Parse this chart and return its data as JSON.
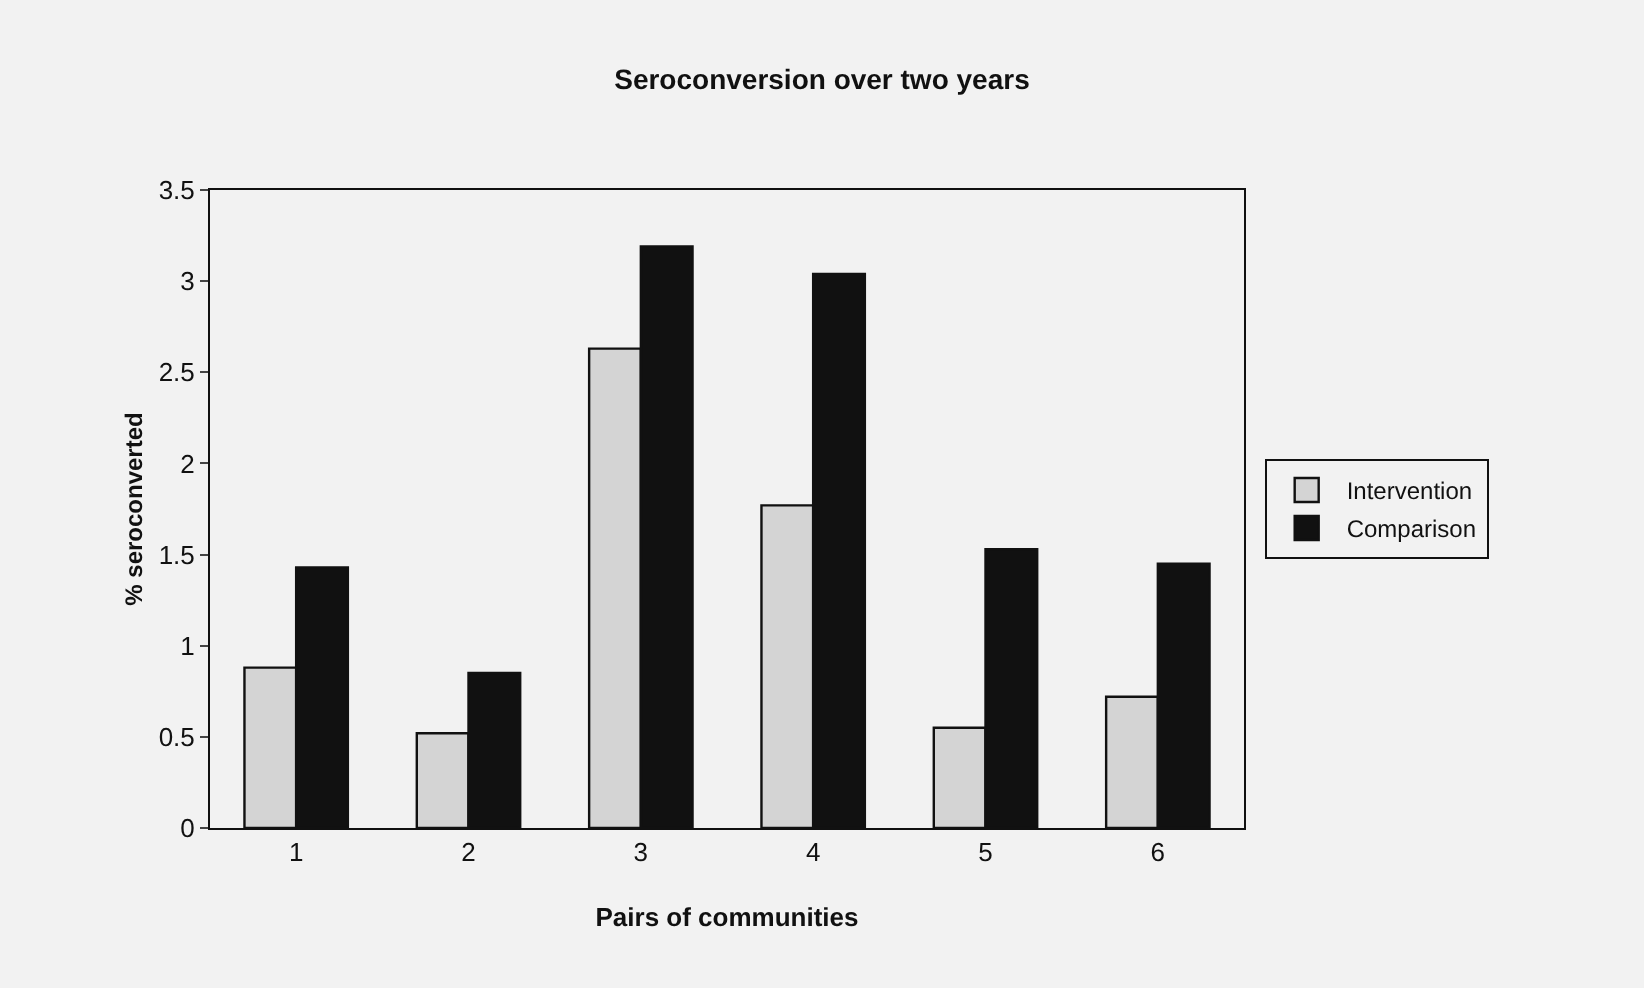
{
  "chart_data": {
    "type": "bar",
    "title": "Seroconversion over two years",
    "xlabel": "Pairs of communities",
    "ylabel": "% seroconverted",
    "categories": [
      "1",
      "2",
      "3",
      "4",
      "5",
      "6"
    ],
    "series": [
      {
        "name": "Intervention",
        "color": "#d4d4d4",
        "values": [
          0.88,
          0.52,
          2.63,
          1.77,
          0.55,
          0.72
        ]
      },
      {
        "name": "Comparison",
        "color": "#111111",
        "values": [
          1.43,
          0.85,
          3.19,
          3.04,
          1.53,
          1.45
        ]
      }
    ],
    "ylim": [
      0,
      3.5
    ],
    "yticks": [
      0,
      0.5,
      1,
      1.5,
      2,
      2.5,
      3,
      3.5
    ],
    "grid": false,
    "legend": "right"
  }
}
